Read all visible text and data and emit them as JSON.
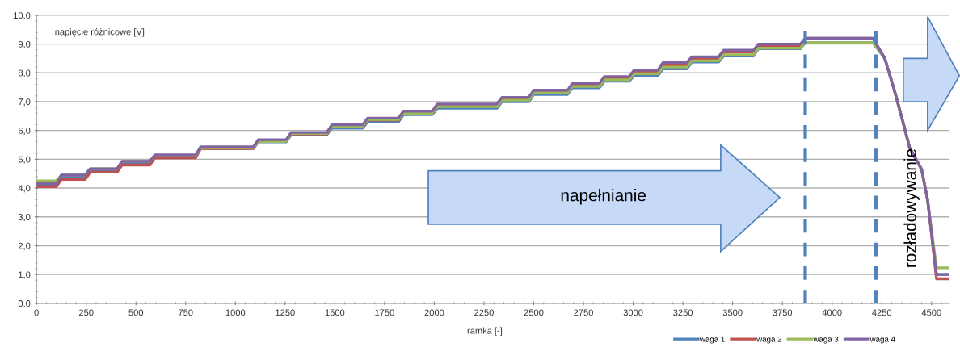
{
  "chart_data": {
    "type": "line",
    "ylabel": "napięcie różnicowe [V]",
    "xlabel": "ramka [-]",
    "x": [
      0,
      100,
      125,
      245,
      270,
      405,
      430,
      570,
      595,
      800,
      825,
      1090,
      1115,
      1255,
      1280,
      1460,
      1485,
      1640,
      1665,
      1820,
      1845,
      1990,
      2015,
      2315,
      2340,
      2475,
      2500,
      2670,
      2695,
      2830,
      2855,
      2980,
      3005,
      3125,
      3150,
      3270,
      3295,
      3430,
      3455,
      3605,
      3630,
      3840,
      3865,
      4205,
      4265,
      4313,
      4360,
      4390,
      4450,
      4480,
      4525,
      4590
    ],
    "series": [
      {
        "name": "waga 1",
        "color": "#4f81bd",
        "values": [
          4.08,
          4.08,
          4.4,
          4.4,
          4.63,
          4.63,
          4.88,
          4.88,
          5.1,
          5.1,
          5.37,
          5.37,
          5.6,
          5.6,
          5.85,
          5.85,
          6.08,
          6.08,
          6.3,
          6.3,
          6.55,
          6.55,
          6.77,
          6.77,
          7.0,
          7.0,
          7.25,
          7.25,
          7.48,
          7.48,
          7.71,
          7.71,
          7.91,
          7.91,
          8.14,
          8.14,
          8.38,
          8.38,
          8.59,
          8.59,
          8.84,
          8.84,
          9.05,
          9.05,
          8.5,
          7.4,
          6.2,
          5.4,
          4.65,
          3.6,
          1.0,
          1.0
        ]
      },
      {
        "name": "waga 2",
        "color": "#c0504d",
        "values": [
          4.05,
          4.05,
          4.3,
          4.3,
          4.55,
          4.55,
          4.8,
          4.8,
          5.05,
          5.05,
          5.37,
          5.37,
          5.63,
          5.63,
          5.88,
          5.88,
          6.12,
          6.12,
          6.36,
          6.36,
          6.6,
          6.6,
          6.85,
          6.85,
          7.08,
          7.08,
          7.33,
          7.33,
          7.57,
          7.57,
          7.8,
          7.8,
          8.03,
          8.03,
          8.28,
          8.28,
          8.48,
          8.48,
          8.72,
          8.72,
          8.92,
          8.92,
          9.2,
          9.2,
          8.5,
          7.4,
          6.2,
          5.4,
          4.65,
          3.6,
          0.85,
          0.85
        ]
      },
      {
        "name": "waga 3",
        "color": "#9bbb59",
        "values": [
          4.25,
          4.25,
          4.45,
          4.45,
          4.67,
          4.67,
          4.93,
          4.93,
          5.13,
          5.13,
          5.4,
          5.4,
          5.62,
          5.62,
          5.9,
          5.9,
          6.15,
          6.15,
          6.38,
          6.38,
          6.6,
          6.6,
          6.83,
          6.83,
          7.05,
          7.05,
          7.3,
          7.3,
          7.53,
          7.53,
          7.76,
          7.76,
          7.97,
          7.97,
          8.2,
          8.2,
          8.42,
          8.42,
          8.63,
          8.63,
          8.86,
          8.86,
          9.05,
          9.05,
          8.5,
          7.4,
          6.2,
          5.4,
          4.65,
          3.6,
          1.23,
          1.23
        ]
      },
      {
        "name": "waga 4",
        "color": "#8064a2",
        "values": [
          4.15,
          4.15,
          4.45,
          4.45,
          4.67,
          4.67,
          4.93,
          4.93,
          5.15,
          5.15,
          5.43,
          5.43,
          5.68,
          5.68,
          5.93,
          5.93,
          6.2,
          6.2,
          6.43,
          6.43,
          6.67,
          6.67,
          6.92,
          6.92,
          7.15,
          7.15,
          7.4,
          7.4,
          7.64,
          7.64,
          7.87,
          7.87,
          8.1,
          8.1,
          8.36,
          8.36,
          8.56,
          8.56,
          8.79,
          8.79,
          9.0,
          9.0,
          9.2,
          9.2,
          8.5,
          7.4,
          6.2,
          5.4,
          4.65,
          3.6,
          1.0,
          1.0
        ]
      }
    ],
    "xlim": [
      0,
      4590
    ],
    "ylim": [
      0,
      10
    ],
    "xticks": [
      0,
      250,
      500,
      750,
      1000,
      1250,
      1500,
      1750,
      2000,
      2250,
      2500,
      2750,
      3000,
      3250,
      3500,
      3750,
      4000,
      4250,
      4500
    ],
    "yticks": [
      {
        "value": 0,
        "label": "0,0"
      },
      {
        "value": 1,
        "label": "1,0"
      },
      {
        "value": 2,
        "label": "2,0"
      },
      {
        "value": 3,
        "label": "3,0"
      },
      {
        "value": 4,
        "label": "4,0"
      },
      {
        "value": 5,
        "label": "5,0"
      },
      {
        "value": 6,
        "label": "6,0"
      },
      {
        "value": 7,
        "label": "7,0"
      },
      {
        "value": 8,
        "label": "8,0"
      },
      {
        "value": 9,
        "label": "9,0"
      },
      {
        "value": 10,
        "label": "10,0"
      }
    ],
    "ref_lines": [
      {
        "axis": "x",
        "value": 3865,
        "color": "#4f81bd",
        "line_style": "dashed"
      },
      {
        "axis": "x",
        "value": 4220,
        "color": "#4f81bd",
        "line_style": "dashed"
      }
    ],
    "annotations": [
      "napełnianie",
      "rozładowywanie"
    ],
    "grid": "y",
    "legend": "bottom right",
    "marker": "none",
    "line_style": "solid"
  }
}
